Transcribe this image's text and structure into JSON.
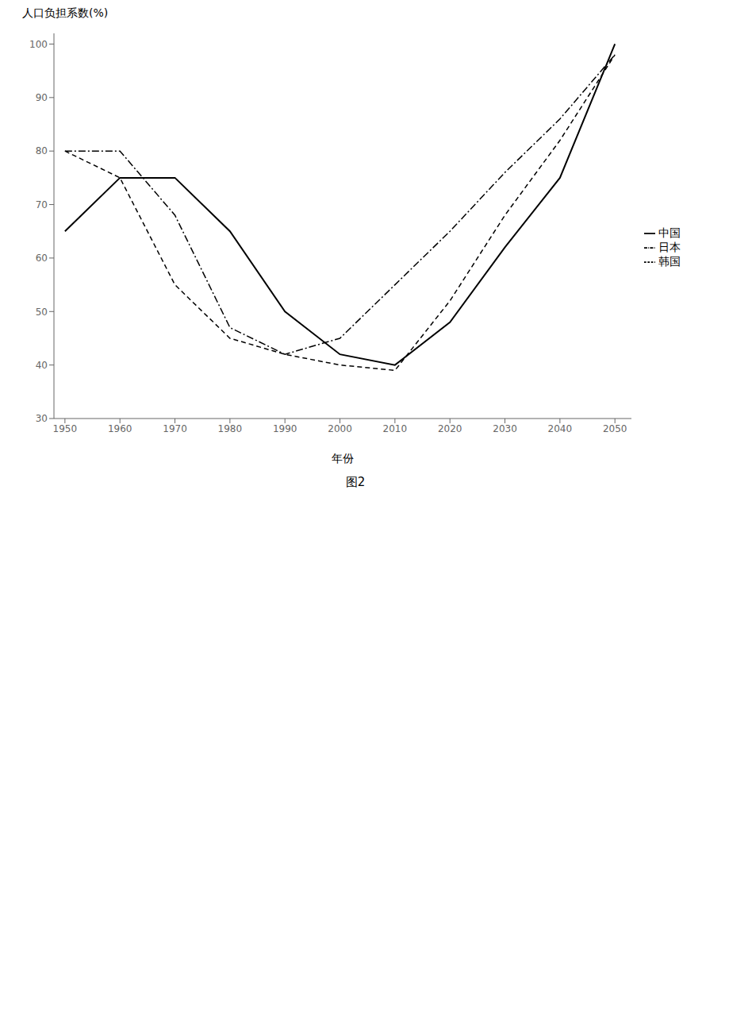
{
  "chart_data": {
    "type": "line",
    "title": "图2",
    "x_label": "年份",
    "y_label": "人口负担系数(%)",
    "x": [
      1950,
      1960,
      1970,
      1980,
      1990,
      2000,
      2010,
      2020,
      2030,
      2040,
      2050
    ],
    "xlim": [
      1948,
      2053
    ],
    "xticks": [
      1950,
      1960,
      1970,
      1980,
      1990,
      2000,
      2010,
      2020,
      2030,
      2040,
      2050
    ],
    "ylim": [
      30,
      102
    ],
    "yticks": [
      30,
      40,
      50,
      60,
      70,
      80,
      90,
      100
    ],
    "grid": false,
    "legend": "right",
    "series": [
      {
        "name": "中国",
        "color": "#000000",
        "line_style": "solid",
        "values": [
          65,
          75,
          75,
          65,
          50,
          42,
          40,
          48,
          62,
          75,
          100
        ]
      },
      {
        "name": "日本",
        "color": "#000000",
        "line_style": "dashdot",
        "values": [
          80,
          80,
          68,
          47,
          42,
          45,
          55,
          65,
          76,
          86,
          98
        ]
      },
      {
        "name": "韩国",
        "color": "#000000",
        "line_style": "dashed",
        "values": [
          80,
          75,
          55,
          45,
          42,
          40,
          39,
          52,
          68,
          82,
          98
        ]
      }
    ]
  }
}
